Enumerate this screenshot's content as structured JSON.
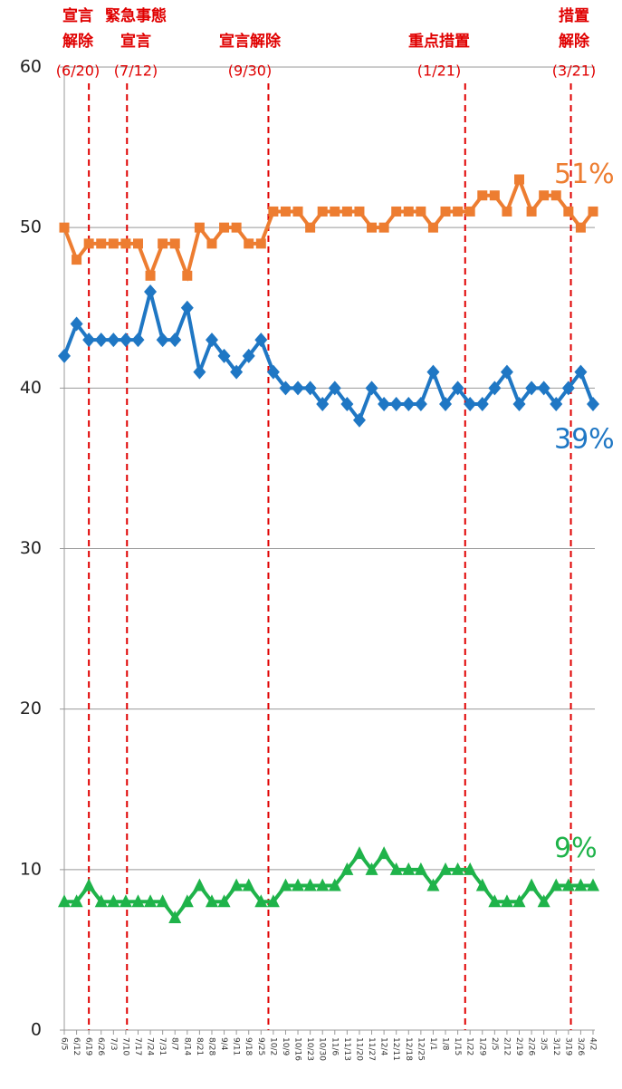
{
  "chart_data": {
    "type": "line",
    "categories": [
      "6/5",
      "6/12",
      "6/19",
      "6/26",
      "7/3",
      "7/10",
      "7/17",
      "7/24",
      "7/31",
      "8/7",
      "8/14",
      "8/21",
      "8/28",
      "9/4",
      "9/11",
      "9/18",
      "9/25",
      "10/2",
      "10/9",
      "10/16",
      "10/23",
      "10/30",
      "11/6",
      "11/13",
      "11/20",
      "11/27",
      "12/4",
      "12/11",
      "12/18",
      "12/25",
      "1/1",
      "1/8",
      "1/15",
      "1/22",
      "1/29",
      "2/5",
      "2/12",
      "2/19",
      "2/26",
      "3/5",
      "3/12",
      "3/19",
      "3/26",
      "4/2"
    ],
    "series": [
      {
        "color": "#ed7d31",
        "marker": "square",
        "values": [
          50,
          48,
          49,
          49,
          49,
          49,
          49,
          47,
          49,
          49,
          47,
          50,
          49,
          50,
          50,
          49,
          49,
          51,
          51,
          51,
          50,
          51,
          51,
          51,
          51,
          50,
          50,
          51,
          51,
          51,
          50,
          51,
          51,
          51,
          52,
          52,
          51,
          53,
          51,
          52,
          52,
          51,
          50,
          51
        ],
        "value_labels": [
          null,
          null,
          null,
          null,
          null,
          null,
          null,
          null,
          null,
          null,
          null,
          null,
          null,
          null,
          null,
          null,
          null,
          null,
          null,
          null,
          null,
          null,
          null,
          null,
          null,
          null,
          null,
          null,
          null,
          null,
          null,
          null,
          null,
          null,
          null,
          null,
          null,
          null,
          null,
          null,
          null,
          null,
          null,
          "51%"
        ]
      },
      {
        "color": "#1f77c4",
        "marker": "diamond",
        "values": [
          42,
          44,
          43,
          43,
          43,
          43,
          43,
          46,
          43,
          43,
          45,
          41,
          43,
          42,
          41,
          42,
          43,
          41,
          40,
          40,
          40,
          39,
          40,
          39,
          38,
          40,
          39,
          39,
          39,
          39,
          41,
          39,
          40,
          39,
          39,
          40,
          41,
          39,
          40,
          40,
          39,
          40,
          41,
          39
        ],
        "value_labels": [
          null,
          null,
          null,
          null,
          null,
          null,
          null,
          null,
          null,
          null,
          null,
          null,
          null,
          null,
          null,
          null,
          null,
          null,
          null,
          null,
          null,
          null,
          null,
          null,
          null,
          null,
          null,
          null,
          null,
          null,
          null,
          null,
          null,
          null,
          null,
          null,
          null,
          null,
          null,
          null,
          null,
          null,
          null,
          "39%"
        ]
      },
      {
        "color": "#1fb34a",
        "marker": "triangle",
        "values": [
          8,
          8,
          9,
          8,
          8,
          8,
          8,
          8,
          8,
          7,
          8,
          9,
          8,
          8,
          9,
          9,
          8,
          8,
          9,
          9,
          9,
          9,
          9,
          10,
          11,
          10,
          11,
          10,
          10,
          10,
          9,
          10,
          10,
          10,
          9,
          8,
          8,
          8,
          9,
          8,
          9,
          9,
          9,
          9
        ],
        "value_labels": [
          null,
          null,
          null,
          null,
          null,
          null,
          null,
          null,
          null,
          null,
          null,
          null,
          null,
          null,
          null,
          null,
          null,
          null,
          null,
          null,
          null,
          null,
          null,
          null,
          null,
          null,
          null,
          null,
          null,
          null,
          null,
          null,
          null,
          null,
          null,
          null,
          null,
          null,
          null,
          null,
          null,
          null,
          null,
          "9%"
        ]
      }
    ],
    "ylim": [
      0,
      60
    ],
    "yticks": [
      0,
      10,
      20,
      30,
      40,
      50,
      60
    ],
    "grid": true,
    "annotations": [
      {
        "lines": [
          "宣言",
          "解除"
        ],
        "date": "(6/20)",
        "color": "#e00000"
      },
      {
        "lines": [
          "緊急事態",
          "宣言"
        ],
        "date": "(7/12)",
        "color": "#e00000"
      },
      {
        "lines": [
          "宣言解除"
        ],
        "date": "(9/30)",
        "color": "#e00000"
      },
      {
        "lines": [
          "重点措置"
        ],
        "date": "(1/21)",
        "color": "#e00000"
      },
      {
        "lines": [
          "措置",
          "解除"
        ],
        "date": "(3/21)",
        "color": "#e00000"
      }
    ]
  }
}
